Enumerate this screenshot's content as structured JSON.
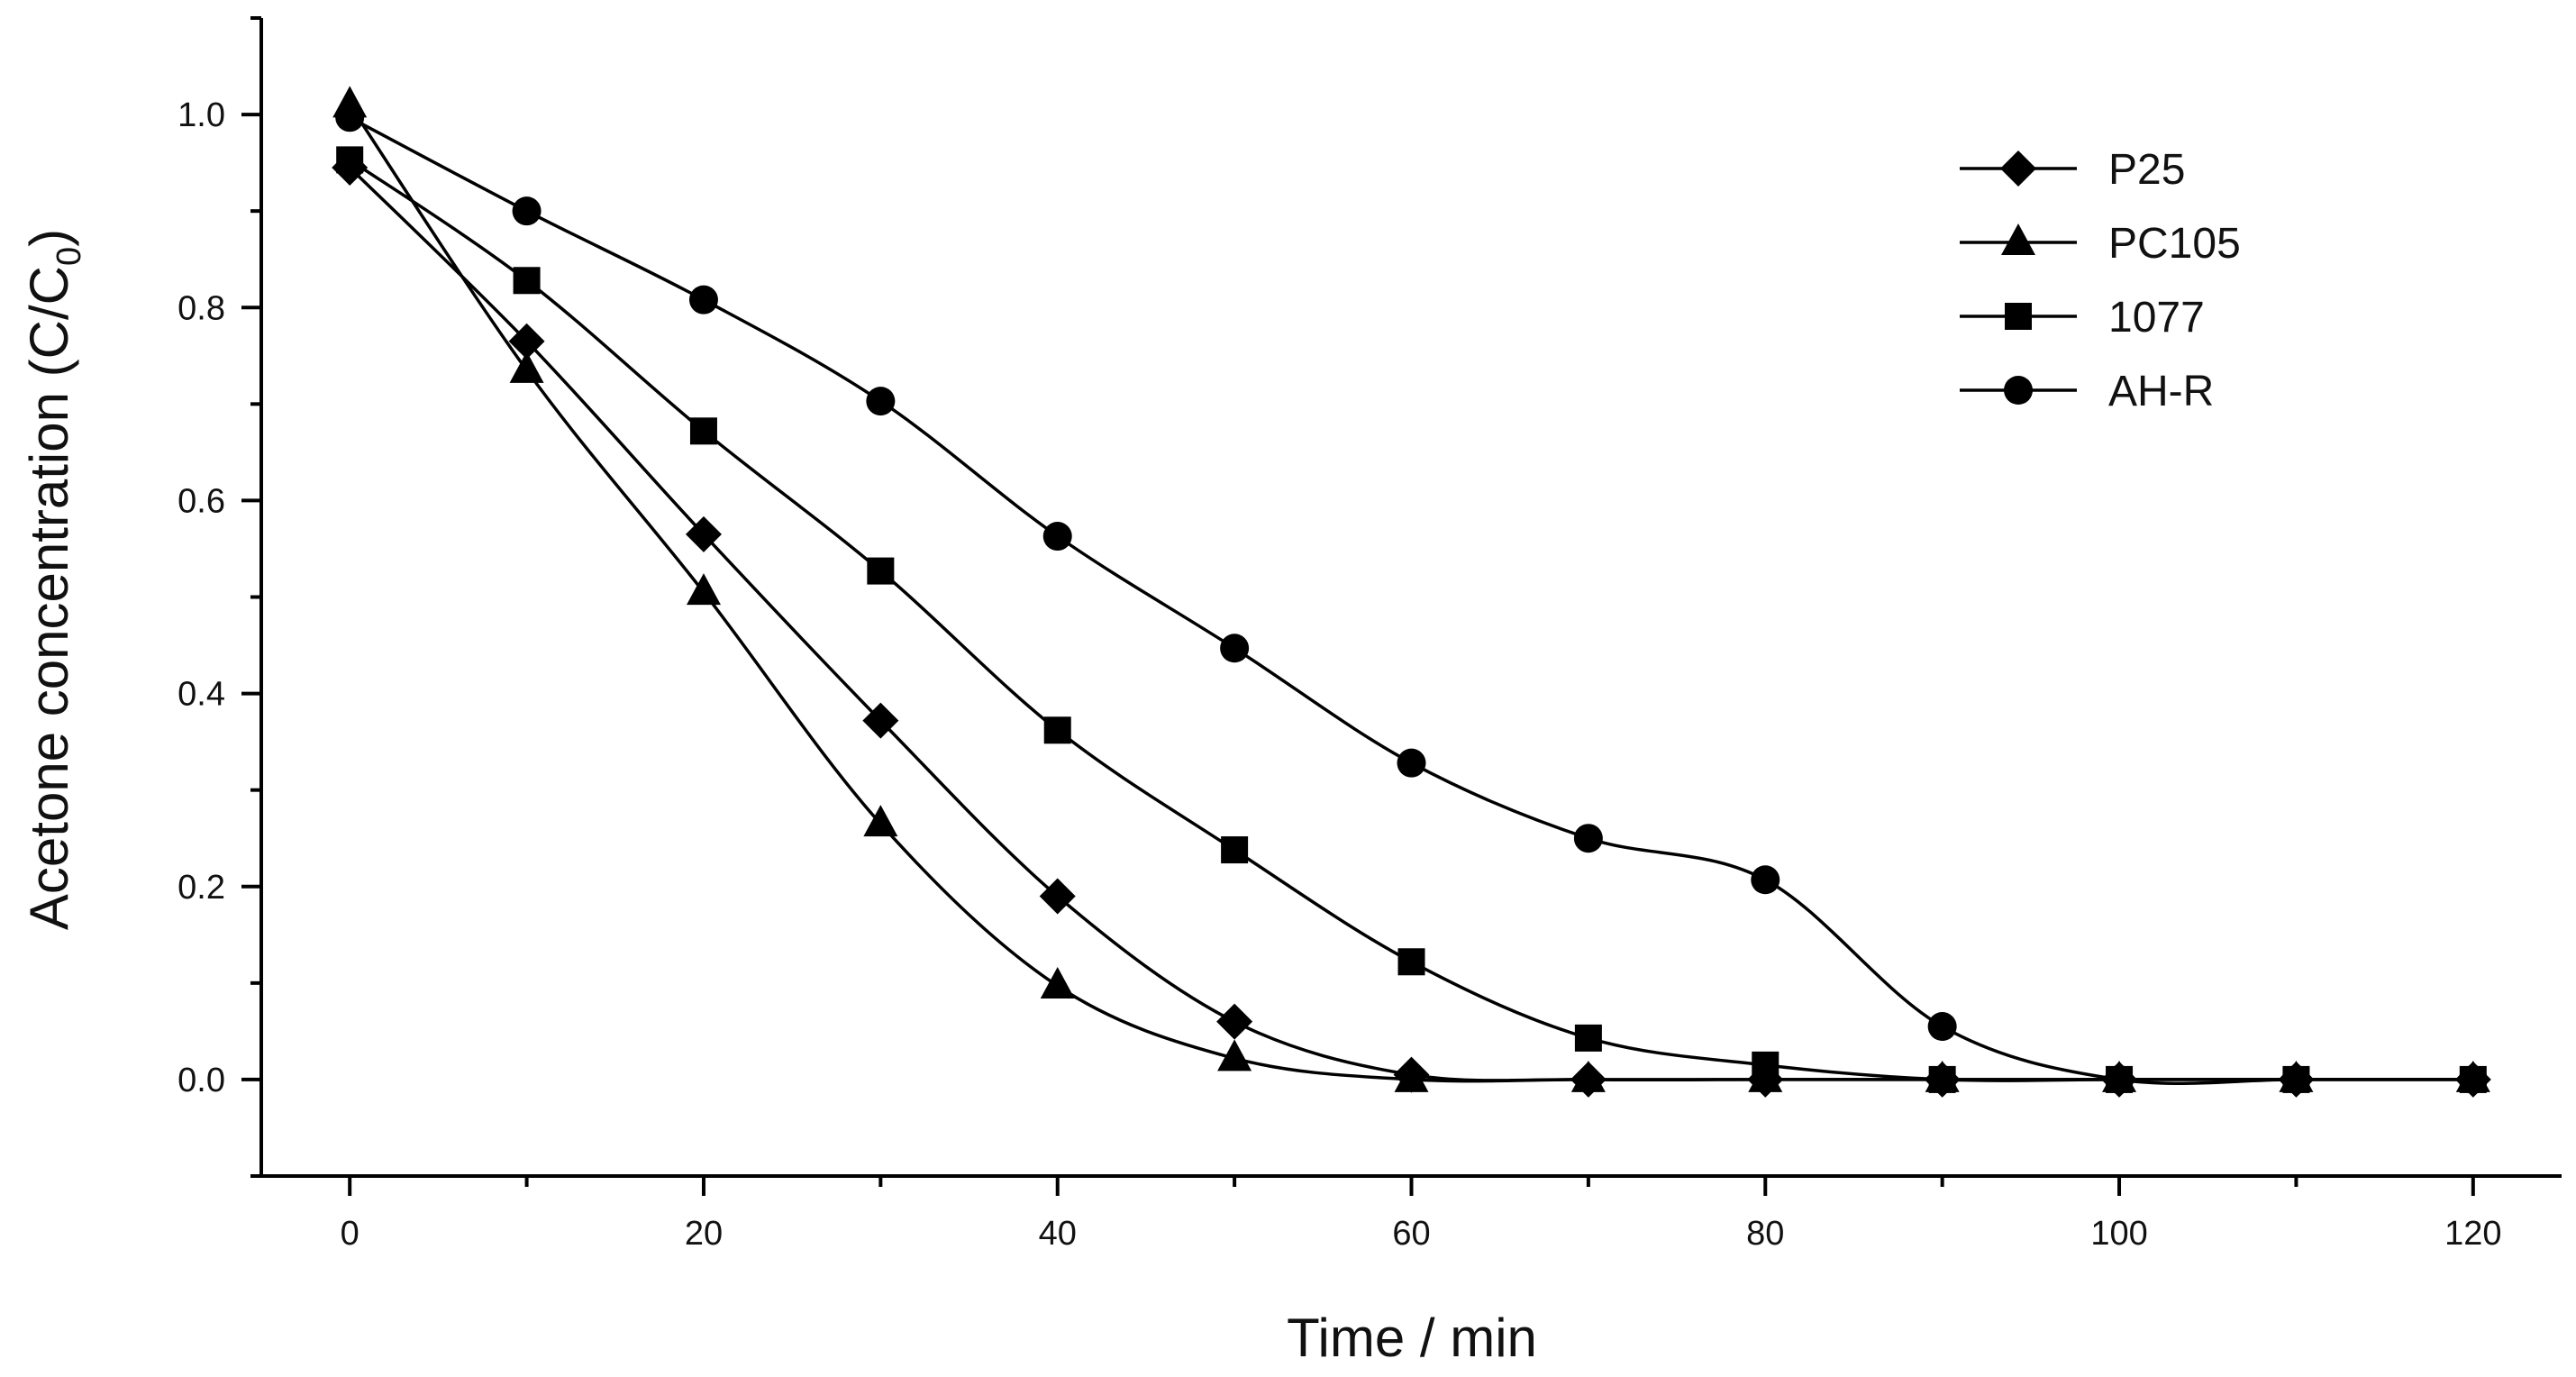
{
  "chart_data": {
    "type": "line",
    "title": "",
    "xlabel": "Time / min",
    "ylabel": {
      "main": "Acetone concentration (C/C",
      "subscript": "0",
      "close": ")"
    },
    "xlim": [
      -5,
      125
    ],
    "ylim": [
      -0.1,
      1.1
    ],
    "xticks": [
      0,
      20,
      40,
      60,
      80,
      100,
      120
    ],
    "xtick_labels": [
      "0",
      "20",
      "40",
      "60",
      "80",
      "100",
      "120"
    ],
    "yticks": [
      0.0,
      0.2,
      0.4,
      0.6,
      0.8,
      1.0
    ],
    "ytick_labels": [
      "0.0",
      "0.2",
      "0.4",
      "0.6",
      "0.8",
      "1.0"
    ],
    "grid": false,
    "legend_position": "top-right",
    "series": [
      {
        "name": "P25",
        "marker": "diamond",
        "color": "#000000",
        "x": [
          0,
          10,
          20,
          30,
          40,
          50,
          60,
          70,
          80,
          90,
          100,
          110,
          120
        ],
        "values": [
          0.945,
          0.765,
          0.565,
          0.372,
          0.19,
          0.06,
          0.005,
          0.0,
          0.0,
          0.0,
          0.0,
          0.0,
          0.0
        ]
      },
      {
        "name": "PC105",
        "marker": "triangle",
        "color": "#000000",
        "x": [
          0,
          10,
          20,
          30,
          40,
          50,
          60,
          70,
          80,
          90,
          100,
          110,
          120
        ],
        "values": [
          1.01,
          0.735,
          0.505,
          0.265,
          0.097,
          0.022,
          0.0,
          0.0,
          0.0,
          0.0,
          0.0,
          0.0,
          0.0
        ]
      },
      {
        "name": "1077",
        "marker": "square",
        "color": "#000000",
        "x": [
          0,
          10,
          20,
          30,
          40,
          50,
          60,
          70,
          80,
          90,
          100,
          110,
          120
        ],
        "values": [
          0.953,
          0.828,
          0.672,
          0.527,
          0.362,
          0.238,
          0.122,
          0.043,
          0.015,
          0.0,
          0.0,
          0.0,
          0.0
        ]
      },
      {
        "name": "AH-R",
        "marker": "circle",
        "color": "#000000",
        "x": [
          0,
          10,
          20,
          30,
          40,
          50,
          60,
          70,
          80,
          90,
          100,
          110,
          120
        ],
        "values": [
          0.997,
          0.9,
          0.808,
          0.703,
          0.563,
          0.447,
          0.328,
          0.25,
          0.207,
          0.055,
          0.0,
          0.0,
          0.0
        ]
      }
    ]
  }
}
